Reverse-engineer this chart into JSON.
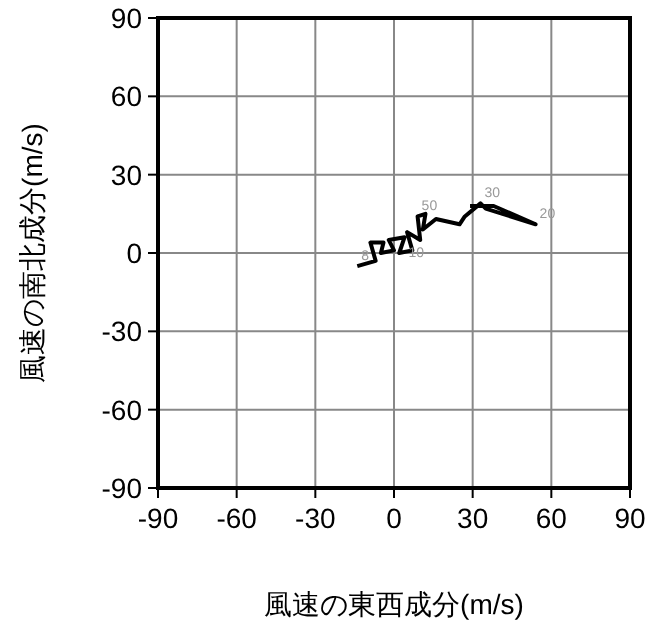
{
  "chart_data": {
    "type": "line",
    "xlabel": "風速の東西成分(m/s)",
    "ylabel": "風速の南北成分(m/s)",
    "xlim": [
      -90,
      90
    ],
    "ylim": [
      -90,
      90
    ],
    "xticks": [
      -90,
      -60,
      -30,
      0,
      30,
      60,
      90
    ],
    "yticks": [
      -90,
      -60,
      -30,
      0,
      30,
      60,
      90
    ],
    "grid": true,
    "series": [
      {
        "color": "#000000",
        "x": [
          -14,
          -7,
          -9,
          -4,
          -5,
          0,
          -2,
          4,
          2,
          7,
          5,
          10,
          9,
          12,
          11,
          16,
          25,
          27,
          33,
          35,
          54,
          38,
          29
        ],
        "values": [
          -5,
          -3,
          4,
          4,
          0,
          1,
          5,
          6,
          0,
          1,
          8,
          5,
          14,
          15,
          9,
          13,
          11,
          14,
          19,
          17,
          11,
          18,
          18
        ]
      }
    ],
    "annotations": [
      {
        "text": "8",
        "x": -14,
        "y": -5
      },
      {
        "text": "10",
        "x": 4,
        "y": -4
      },
      {
        "text": "50",
        "x": 9,
        "y": 14
      },
      {
        "text": "30",
        "x": 33,
        "y": 19
      },
      {
        "text": "20",
        "x": 54,
        "y": 11
      }
    ]
  }
}
